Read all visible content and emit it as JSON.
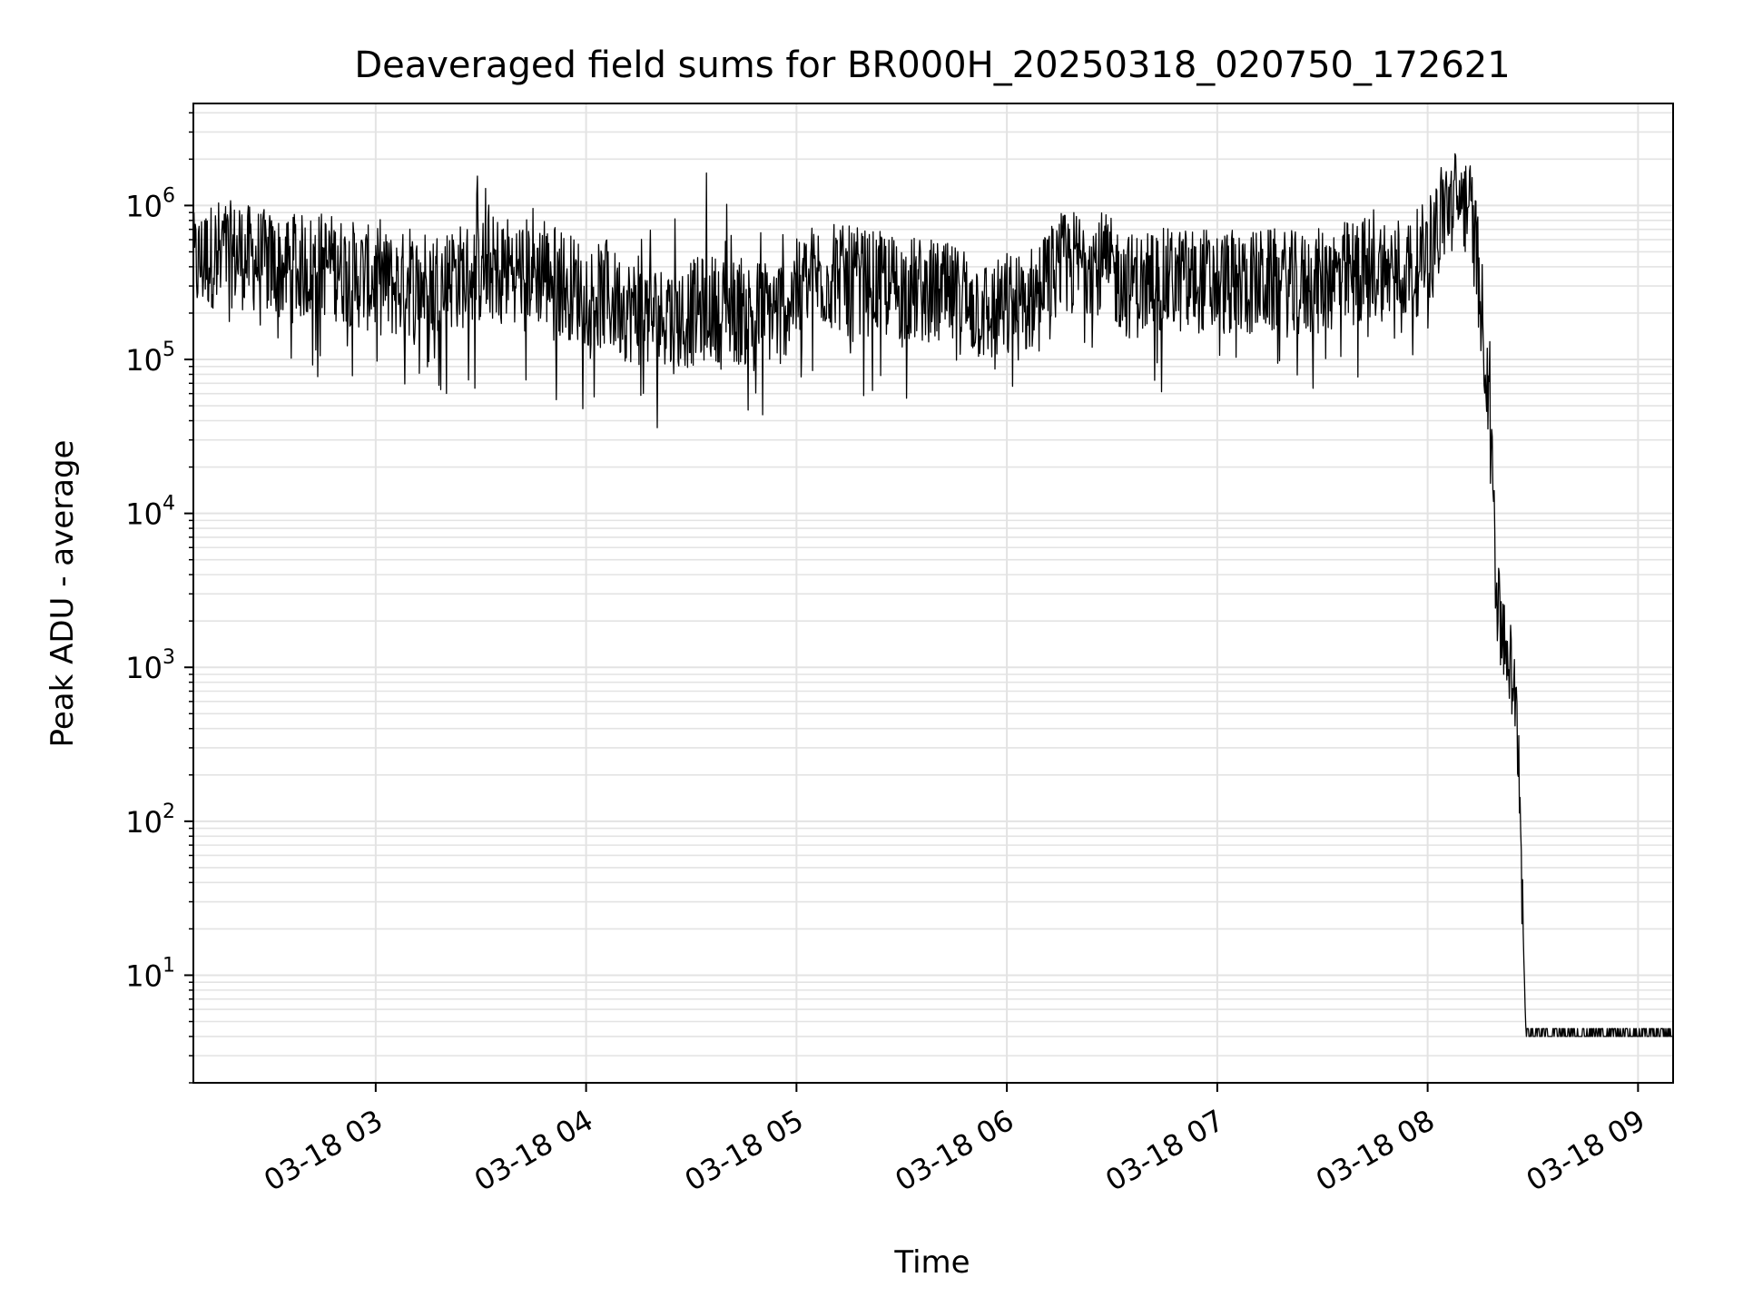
{
  "chart_data": {
    "type": "line",
    "title": "Deaveraged field sums for BR000H_20250318_020750_172621",
    "xlabel": "Time",
    "ylabel": "Peak ADU - average",
    "yscale": "log",
    "ylim": [
      2,
      4600000
    ],
    "xlim": [
      "2025-03-18T02:08:00",
      "2025-03-18T09:10:00"
    ],
    "grid": "major and minor",
    "x_ticks": [
      {
        "label": "03-18 03",
        "time": "2025-03-18T03:00:00"
      },
      {
        "label": "03-18 04",
        "time": "2025-03-18T04:00:00"
      },
      {
        "label": "03-18 05",
        "time": "2025-03-18T05:00:00"
      },
      {
        "label": "03-18 06",
        "time": "2025-03-18T06:00:00"
      },
      {
        "label": "03-18 07",
        "time": "2025-03-18T07:00:00"
      },
      {
        "label": "03-18 08",
        "time": "2025-03-18T08:00:00"
      },
      {
        "label": "03-18 09",
        "time": "2025-03-18T09:00:00"
      }
    ],
    "y_ticks": [
      {
        "base": "10",
        "exp": "1",
        "value": 10
      },
      {
        "base": "10",
        "exp": "2",
        "value": 100
      },
      {
        "base": "10",
        "exp": "3",
        "value": 1000
      },
      {
        "base": "10",
        "exp": "4",
        "value": 10000
      },
      {
        "base": "10",
        "exp": "5",
        "value": 100000
      },
      {
        "base": "10",
        "exp": "6",
        "value": 1000000
      }
    ],
    "series": [
      {
        "color": "#000000",
        "x": [
          "02:08",
          "02:15",
          "02:25",
          "02:35",
          "02:45",
          "02:55",
          "03:05",
          "03:15",
          "03:25",
          "03:35",
          "03:45",
          "03:55",
          "04:05",
          "04:15",
          "04:25",
          "04:35",
          "04:45",
          "04:55",
          "05:05",
          "05:15",
          "05:25",
          "05:35",
          "05:45",
          "05:55",
          "06:05",
          "06:15",
          "06:25",
          "06:35",
          "06:45",
          "06:55",
          "07:05",
          "07:15",
          "07:25",
          "07:35",
          "07:45",
          "07:55",
          "08:00",
          "08:05",
          "08:10",
          "08:12",
          "08:14",
          "08:16",
          "08:18",
          "08:20",
          "08:22",
          "08:24",
          "08:26",
          "08:28",
          "08:30",
          "08:40",
          "08:50",
          "09:00",
          "09:10"
        ],
        "y": [
          400000,
          500000,
          450000,
          380000,
          420000,
          350000,
          300000,
          320000,
          350000,
          400000,
          380000,
          300000,
          250000,
          200000,
          180000,
          220000,
          200000,
          210000,
          350000,
          330000,
          300000,
          280000,
          250000,
          200000,
          220000,
          400000,
          450000,
          300000,
          320000,
          330000,
          310000,
          320000,
          300000,
          350000,
          400000,
          380000,
          500000,
          1000000,
          1100000,
          1000000,
          500000,
          150000,
          50000,
          2000,
          1800,
          900,
          300,
          4,
          4,
          4,
          4,
          4,
          4
        ],
        "y_low": [
          150000,
          120000,
          90000,
          80000,
          70000,
          60000,
          55000,
          55000,
          60000,
          60000,
          55000,
          45000,
          40000,
          35000,
          35000,
          35000,
          35000,
          40000,
          70000,
          60000,
          55000,
          55000,
          55000,
          50000,
          60000,
          120000,
          110000,
          60000,
          60000,
          60000,
          60000,
          60000,
          60000,
          60000,
          70000,
          80000,
          150000,
          500000,
          700000,
          600000,
          200000,
          40000,
          10000,
          1000,
          700,
          300,
          200,
          4,
          4,
          4,
          4,
          4,
          4
        ],
        "y_high": [
          1800000,
          1300000,
          1200000,
          1100000,
          1000000,
          900000,
          800000,
          1200000,
          1500000,
          1900000,
          1000000,
          900000,
          800000,
          900000,
          1000000,
          2000000,
          1000000,
          900000,
          1000000,
          800000,
          700000,
          600000,
          600000,
          500000,
          500000,
          800000,
          900000,
          700000,
          800000,
          800000,
          700000,
          700000,
          700000,
          900000,
          1000000,
          900000,
          1200000,
          2300000,
          1600000,
          1300000,
          800000,
          300000,
          60000,
          5000,
          2500,
          1500,
          400,
          4.5,
          4.5,
          4.5,
          4.5,
          4.5,
          4.5
        ]
      }
    ]
  }
}
